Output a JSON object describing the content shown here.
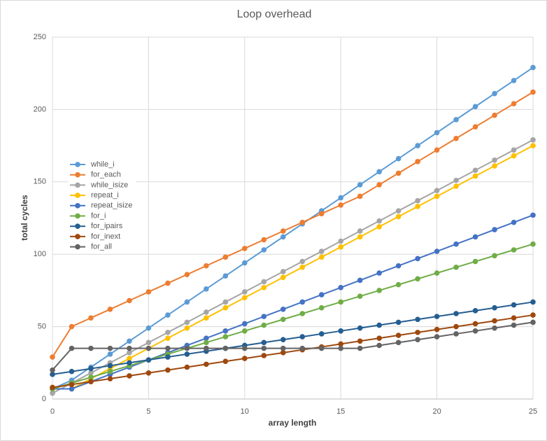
{
  "chart_data": {
    "type": "line",
    "title": "Loop overhead",
    "x_label": "array length",
    "y_label": "total cycles",
    "x": [
      0,
      1,
      2,
      3,
      4,
      5,
      6,
      7,
      8,
      9,
      10,
      11,
      12,
      13,
      14,
      15,
      16,
      17,
      18,
      19,
      20,
      21,
      22,
      23,
      24,
      25
    ],
    "xlim": [
      0,
      25
    ],
    "xticks": [
      0,
      5,
      10,
      15,
      20,
      25
    ],
    "ylim": [
      0,
      250
    ],
    "yticks": [
      0,
      50,
      100,
      150,
      200,
      250
    ],
    "grid": true,
    "legend": "left",
    "series": [
      {
        "name": "while_i",
        "color": "#5b9bd5",
        "values": [
          7,
          13,
          22,
          31,
          40,
          49,
          58,
          67,
          76,
          85,
          94,
          103,
          112,
          121,
          130,
          139,
          148,
          157,
          166,
          175,
          184,
          193,
          202,
          211,
          220,
          229
        ]
      },
      {
        "name": "for_each",
        "color": "#ed7d31",
        "values": [
          29,
          50,
          56,
          62,
          68,
          74,
          80,
          86,
          92,
          98,
          104,
          110,
          116,
          122,
          128,
          134,
          140,
          148,
          156,
          164,
          172,
          180,
          188,
          196,
          204,
          212
        ]
      },
      {
        "name": "while_isize",
        "color": "#a5a5a5",
        "values": [
          4,
          11,
          18,
          25,
          32,
          39,
          46,
          53,
          60,
          67,
          74,
          81,
          88,
          95,
          102,
          109,
          116,
          123,
          130,
          137,
          144,
          151,
          158,
          165,
          172,
          179
        ]
      },
      {
        "name": "repeat_i",
        "color": "#ffc000",
        "values": [
          7,
          7,
          14,
          21,
          28,
          35,
          42,
          49,
          56,
          63,
          70,
          77,
          84,
          91,
          98,
          105,
          112,
          119,
          126,
          133,
          140,
          147,
          154,
          161,
          168,
          175
        ]
      },
      {
        "name": "repeat_isize",
        "color": "#4472c4",
        "values": [
          7,
          7,
          12,
          17,
          22,
          27,
          32,
          37,
          42,
          47,
          52,
          57,
          62,
          67,
          72,
          77,
          82,
          87,
          92,
          97,
          102,
          107,
          112,
          117,
          122,
          127
        ]
      },
      {
        "name": "for_i",
        "color": "#70ad47",
        "values": [
          7,
          11,
          15,
          19,
          23,
          27,
          31,
          35,
          39,
          43,
          47,
          51,
          55,
          59,
          63,
          67,
          71,
          75,
          79,
          83,
          87,
          91,
          95,
          99,
          103,
          107
        ]
      },
      {
        "name": "for_ipairs",
        "color": "#255e91",
        "values": [
          17,
          19,
          21,
          23,
          25,
          27,
          29,
          31,
          33,
          35,
          37,
          39,
          41,
          43,
          45,
          47,
          49,
          51,
          53,
          55,
          57,
          59,
          61,
          63,
          65,
          67
        ]
      },
      {
        "name": "for_inext",
        "color": "#9e480e",
        "values": [
          8,
          10,
          12,
          14,
          16,
          18,
          20,
          22,
          24,
          26,
          28,
          30,
          32,
          34,
          36,
          38,
          40,
          42,
          44,
          46,
          48,
          50,
          52,
          54,
          56,
          58
        ]
      },
      {
        "name": "for_all",
        "color": "#636363",
        "values": [
          20,
          35,
          35,
          35,
          35,
          35,
          35,
          35,
          35,
          35,
          35,
          35,
          35,
          35,
          35,
          35,
          35,
          37,
          39,
          41,
          43,
          45,
          47,
          49,
          51,
          53
        ]
      }
    ]
  }
}
